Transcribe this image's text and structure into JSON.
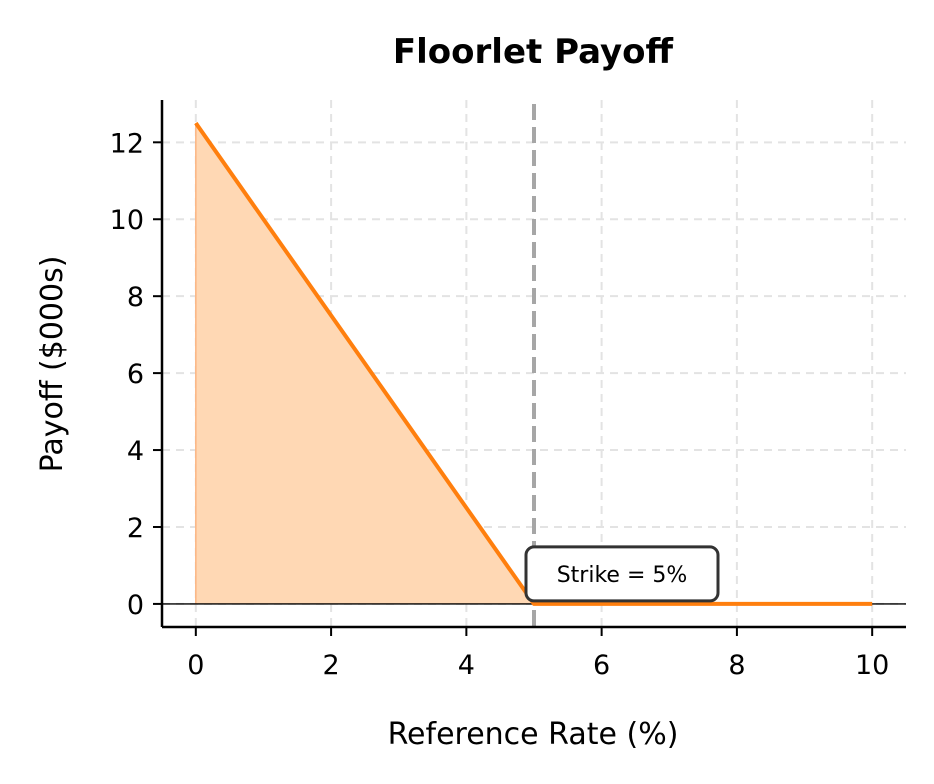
{
  "chart_data": {
    "type": "area",
    "title": "Floorlet Payoff",
    "xlabel": "Reference Rate (%)",
    "ylabel": "Payoff ($000s)",
    "xlim": [
      -0.5,
      10.5
    ],
    "ylim": [
      -0.6,
      13.1
    ],
    "xticks": [
      0,
      2,
      4,
      6,
      8,
      10
    ],
    "yticks": [
      0,
      2,
      4,
      6,
      8,
      10,
      12
    ],
    "xtick_labels": [
      "0",
      "2",
      "4",
      "6",
      "8",
      "10"
    ],
    "ytick_labels": [
      "0",
      "2",
      "4",
      "6",
      "8",
      "10",
      "12"
    ],
    "grid": true,
    "series": [
      {
        "x": [
          0,
          5,
          10
        ],
        "y": [
          12.5,
          0,
          0
        ],
        "color": "#ff7f0e",
        "fill_color": "#ffd8b4"
      }
    ],
    "strike": {
      "x": 5,
      "label": "Strike = 5%",
      "line_color": "#a6a6a6"
    },
    "zero_line": {
      "y": 0
    }
  }
}
